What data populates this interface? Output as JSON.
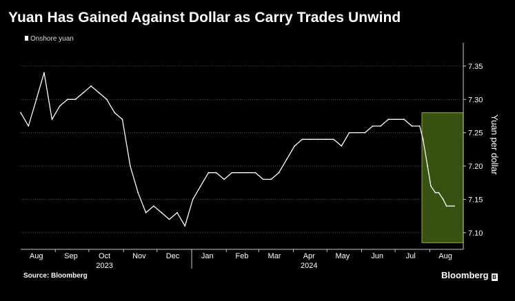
{
  "header": {
    "title": "Yuan Has Gained Against Dollar as Carry Trades Unwind",
    "legend_label": "Onshore yuan"
  },
  "footer": {
    "source": "Source: Bloomberg",
    "brand": "Bloomberg"
  },
  "colors": {
    "background": "#000000",
    "series": "#ffffff",
    "grid": "#555555",
    "highlight_fill": "#3d5a12",
    "highlight_border": "#8fb23a"
  },
  "chart_data": {
    "type": "line",
    "ylabel": "Yuan per dollar",
    "ylim": [
      7.075,
      7.385
    ],
    "yticks": [
      7.1,
      7.15,
      7.2,
      7.25,
      7.3,
      7.35
    ],
    "ytick_labels": [
      "7.10",
      "7.15",
      "7.20",
      "7.25",
      "7.30",
      "7.35"
    ],
    "xlim": [
      "2023-08-01",
      "2024-08-31"
    ],
    "x_ticks": [
      {
        "label": "Aug",
        "date": "2023-08-15"
      },
      {
        "label": "Sep",
        "date": "2023-09-15"
      },
      {
        "label": "Oct",
        "date": "2023-10-15"
      },
      {
        "label": "Nov",
        "date": "2023-11-15"
      },
      {
        "label": "Dec",
        "date": "2023-12-15"
      },
      {
        "label": "Jan",
        "date": "2024-01-15"
      },
      {
        "label": "Feb",
        "date": "2024-02-15"
      },
      {
        "label": "Mar",
        "date": "2024-03-15"
      },
      {
        "label": "Apr",
        "date": "2024-04-15"
      },
      {
        "label": "May",
        "date": "2024-05-15"
      },
      {
        "label": "Jun",
        "date": "2024-06-15"
      },
      {
        "label": "Jul",
        "date": "2024-07-15"
      },
      {
        "label": "Aug",
        "date": "2024-08-15"
      }
    ],
    "year_labels": [
      {
        "label": "2023",
        "date": "2023-10-15"
      },
      {
        "label": "2024",
        "date": "2024-04-15"
      }
    ],
    "grid": true,
    "legend_position": "top-left",
    "highlight": {
      "x_start": "2024-07-25",
      "x_end": "2024-08-31",
      "y_low": 7.085,
      "y_high": 7.28
    },
    "series": [
      {
        "name": "Onshore yuan",
        "x": [
          "2023-08-01",
          "2023-08-08",
          "2023-08-15",
          "2023-08-22",
          "2023-08-29",
          "2023-09-05",
          "2023-09-12",
          "2023-09-19",
          "2023-09-26",
          "2023-10-03",
          "2023-10-10",
          "2023-10-17",
          "2023-10-24",
          "2023-10-31",
          "2023-11-07",
          "2023-11-14",
          "2023-11-21",
          "2023-11-28",
          "2023-12-05",
          "2023-12-12",
          "2023-12-19",
          "2023-12-26",
          "2024-01-02",
          "2024-01-09",
          "2024-01-16",
          "2024-01-23",
          "2024-01-30",
          "2024-02-06",
          "2024-02-13",
          "2024-02-20",
          "2024-02-27",
          "2024-03-05",
          "2024-03-12",
          "2024-03-19",
          "2024-03-26",
          "2024-04-02",
          "2024-04-09",
          "2024-04-16",
          "2024-04-23",
          "2024-04-30",
          "2024-05-07",
          "2024-05-14",
          "2024-05-21",
          "2024-05-28",
          "2024-06-04",
          "2024-06-11",
          "2024-06-18",
          "2024-06-25",
          "2024-07-02",
          "2024-07-09",
          "2024-07-16",
          "2024-07-23",
          "2024-07-26",
          "2024-07-30",
          "2024-08-02",
          "2024-08-06",
          "2024-08-09",
          "2024-08-13",
          "2024-08-16",
          "2024-08-20",
          "2024-08-23"
        ],
        "values": [
          7.28,
          7.26,
          7.3,
          7.34,
          7.27,
          7.29,
          7.3,
          7.3,
          7.31,
          7.32,
          7.31,
          7.3,
          7.28,
          7.27,
          7.2,
          7.16,
          7.13,
          7.14,
          7.13,
          7.12,
          7.13,
          7.11,
          7.15,
          7.17,
          7.19,
          7.19,
          7.18,
          7.19,
          7.19,
          7.19,
          7.19,
          7.18,
          7.18,
          7.19,
          7.21,
          7.23,
          7.24,
          7.24,
          7.24,
          7.24,
          7.24,
          7.23,
          7.25,
          7.25,
          7.25,
          7.26,
          7.26,
          7.27,
          7.27,
          7.27,
          7.26,
          7.26,
          7.24,
          7.2,
          7.17,
          7.16,
          7.16,
          7.15,
          7.14,
          7.14,
          7.14
        ]
      }
    ]
  }
}
